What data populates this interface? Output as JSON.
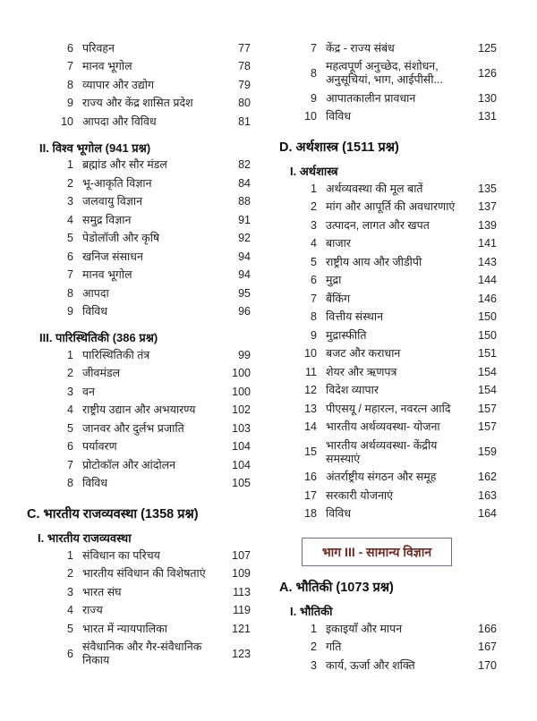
{
  "document": {
    "kind": "table-of-contents",
    "colors": {
      "banner_text": "#702c26",
      "banner_border": "#6a7186",
      "body_text": "#222222"
    },
    "columns": [
      {
        "blocks": [
          {
            "type": "items",
            "rows": [
              {
                "num": "6",
                "title": "परिवहन",
                "page": "77"
              },
              {
                "num": "7",
                "title": "मानव भूगोल",
                "page": "78"
              },
              {
                "num": "8",
                "title": "व्यापार और उद्योग",
                "page": "79"
              },
              {
                "num": "9",
                "title": "राज्य और केंद्र शासित प्रदेश",
                "page": "80"
              },
              {
                "num": "10",
                "title": "आपदा और विविध",
                "page": "81"
              }
            ]
          },
          {
            "type": "section",
            "label": "II. विश्व भूगोल (941 प्रश्न)"
          },
          {
            "type": "items",
            "rows": [
              {
                "num": "1",
                "title": "ब्रह्मांड और सौर मंडल",
                "page": "82"
              },
              {
                "num": "2",
                "title": "भू-आकृति विज्ञान",
                "page": "84"
              },
              {
                "num": "3",
                "title": "जलवायु विज्ञान",
                "page": "88"
              },
              {
                "num": "4",
                "title": "समुद्र विज्ञान",
                "page": "91"
              },
              {
                "num": "5",
                "title": "पेडोलॉजी और कृषि",
                "page": "92"
              },
              {
                "num": "6",
                "title": "खनिज संसाधन",
                "page": "94"
              },
              {
                "num": "7",
                "title": "मानव भूगोल",
                "page": "94"
              },
              {
                "num": "8",
                "title": "आपदा",
                "page": "95"
              },
              {
                "num": "9",
                "title": "विविध",
                "page": "96"
              }
            ]
          },
          {
            "type": "section",
            "label": "III. पारिस्थितिकी (386 प्रश्न)"
          },
          {
            "type": "items",
            "rows": [
              {
                "num": "1",
                "title": "पारिस्थितिकी तंत्र",
                "page": "99"
              },
              {
                "num": "2",
                "title": "जीवमंडल",
                "page": "100"
              },
              {
                "num": "3",
                "title": "वन",
                "page": "100"
              },
              {
                "num": "4",
                "title": "राष्ट्रीय उद्यान और अभयारण्य",
                "page": "102"
              },
              {
                "num": "5",
                "title": "जानवर और दुर्लभ प्रजाति",
                "page": "103"
              },
              {
                "num": "6",
                "title": "पर्यावरण",
                "page": "104"
              },
              {
                "num": "7",
                "title": "प्रोटोकॉल और आंदोलन",
                "page": "104"
              },
              {
                "num": "8",
                "title": "विविध",
                "page": "105"
              }
            ]
          },
          {
            "type": "part",
            "label": "C. भारतीय राजव्यवस्था (1358 प्रश्न)"
          },
          {
            "type": "subsection",
            "label": "I. भारतीय राजव्यवस्था"
          },
          {
            "type": "items",
            "rows": [
              {
                "num": "1",
                "title": "संविधान का परिचय",
                "page": "107"
              },
              {
                "num": "2",
                "title": "भारतीय संविधान की विशेषताएं",
                "page": "109"
              },
              {
                "num": "3",
                "title": "भारत संघ",
                "page": "113"
              },
              {
                "num": "4",
                "title": "राज्य",
                "page": "119"
              },
              {
                "num": "5",
                "title": "भारत में न्यायपालिका",
                "page": "121"
              },
              {
                "num": "6",
                "title": "संवैधानिक और गैर-संवैधानिक निकाय",
                "page": "123"
              }
            ]
          }
        ]
      },
      {
        "blocks": [
          {
            "type": "items",
            "rows": [
              {
                "num": "7",
                "title": "केंद्र - राज्य संबंध",
                "page": "125"
              },
              {
                "num": "8",
                "title": "महत्वपूर्ण अनुच्छेद, संशोधन, अनुसूचियां, भाग, आईपीसी...",
                "page": "126"
              },
              {
                "num": "9",
                "title": "आपातकालीन प्रावधान",
                "page": "130"
              },
              {
                "num": "10",
                "title": "विविध",
                "page": "131"
              }
            ]
          },
          {
            "type": "part",
            "label": "D. अर्थशास्त्र (1511 प्रश्न)"
          },
          {
            "type": "subsection",
            "label": "I. अर्थशास्त्र"
          },
          {
            "type": "items",
            "rows": [
              {
                "num": "1",
                "title": "अर्थव्यवस्था की मूल बातें",
                "page": "135"
              },
              {
                "num": "2",
                "title": "मांग और आपूर्ति की अवधारणाएं",
                "page": "137"
              },
              {
                "num": "3",
                "title": "उत्पादन, लागत और खपत",
                "page": "139"
              },
              {
                "num": "4",
                "title": "बाजार",
                "page": "141"
              },
              {
                "num": "5",
                "title": "राष्ट्रीय आय और जीडीपी",
                "page": "143"
              },
              {
                "num": "6",
                "title": "मुद्रा",
                "page": "144"
              },
              {
                "num": "7",
                "title": "बैंकिंग",
                "page": "146"
              },
              {
                "num": "8",
                "title": "वित्तीय संस्थान",
                "page": "150"
              },
              {
                "num": "9",
                "title": "मुद्रास्फीति",
                "page": "150"
              },
              {
                "num": "10",
                "title": "बजट और कराधान",
                "page": "151"
              },
              {
                "num": "11",
                "title": "शेयर और ऋणपत्र",
                "page": "154"
              },
              {
                "num": "12",
                "title": "विदेश व्यापार",
                "page": "154"
              },
              {
                "num": "13",
                "title": "पीएसयू / महारत्न, नवरत्न आदि",
                "page": "157"
              },
              {
                "num": "14",
                "title": "भारतीय अर्थव्यवस्था- योजना",
                "page": "157"
              },
              {
                "num": "15",
                "title": "भारतीय अर्थव्यवस्था- केंद्रीय समस्याएं",
                "page": "159"
              },
              {
                "num": "16",
                "title": "अंतर्राष्ट्रीय संगठन और समूह",
                "page": "162"
              },
              {
                "num": "17",
                "title": "सरकारी योजनाएं",
                "page": "163"
              },
              {
                "num": "18",
                "title": "विविध",
                "page": "164"
              }
            ]
          },
          {
            "type": "banner",
            "label": "भाग III - सामान्य विज्ञान"
          },
          {
            "type": "part",
            "label": "A. भौतिकी (1073 प्रश्न)"
          },
          {
            "type": "subsection",
            "label": "I. भौतिकी"
          },
          {
            "type": "items",
            "rows": [
              {
                "num": "1",
                "title": "इकाइयाँ और मापन",
                "page": "166"
              },
              {
                "num": "2",
                "title": "गति",
                "page": "167"
              },
              {
                "num": "3",
                "title": "कार्य, ऊर्जा और शक्ति",
                "page": "170"
              }
            ]
          }
        ]
      }
    ]
  }
}
